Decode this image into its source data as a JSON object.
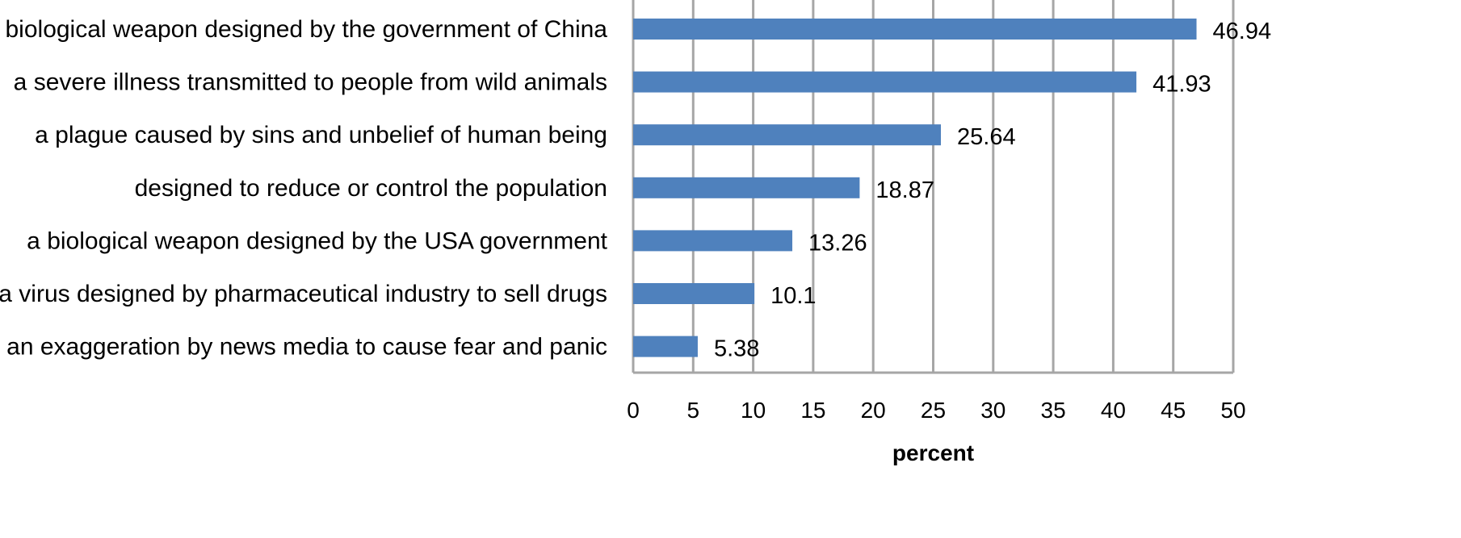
{
  "chart_data": {
    "type": "bar",
    "orientation": "horizontal",
    "categories": [
      "a biological weapon designed by the government of China",
      "a severe illness transmitted to people from wild animals",
      "a plague caused by sins and unbelief of human being",
      "designed to reduce or control the population",
      "a biological weapon designed by the USA government",
      "a virus designed by pharmaceutical industry to sell drugs",
      "an exaggeration by news media to cause fear and panic"
    ],
    "values": [
      46.94,
      41.93,
      25.64,
      18.87,
      13.26,
      10.1,
      5.38
    ],
    "data_labels": [
      "46.94",
      "41.93",
      "25.64",
      "18.87",
      "13.26",
      "10.1",
      "5.38"
    ],
    "xlabel": "percent",
    "xlim": [
      0,
      50
    ],
    "xticks": [
      0,
      5,
      10,
      15,
      20,
      25,
      30,
      35,
      40,
      45,
      50
    ],
    "grid": "vertical",
    "bar_color": "#4F81BD",
    "grid_color": "#A6A6A6"
  }
}
